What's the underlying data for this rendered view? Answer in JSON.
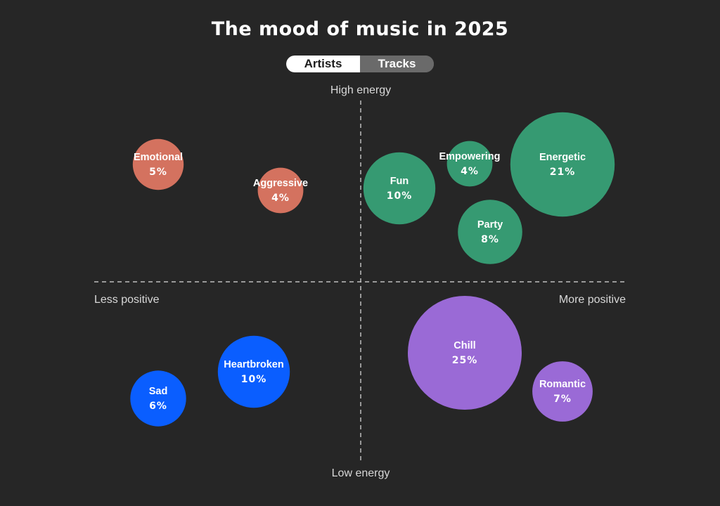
{
  "title": "The mood of music in 2025",
  "toggle": {
    "options": [
      "Artists",
      "Tracks"
    ],
    "selected": "Artists"
  },
  "chart_data": {
    "type": "bubble",
    "title": "The mood of music in 2025",
    "axis_labels": {
      "top": "High energy",
      "bottom": "Low energy",
      "left": "Less positive",
      "right": "More positive"
    },
    "grid": "dashed quadrant dividers",
    "colors": {
      "red": "#d4725f",
      "green": "#369a72",
      "blue": "#0a5eff",
      "purple": "#9a6ad6"
    },
    "bubbles": [
      {
        "label": "Emotional",
        "value_text": "5%",
        "value": 5,
        "color": "#d4725f"
      },
      {
        "label": "Aggressive",
        "value_text": "4%",
        "value": 4,
        "color": "#d4725f"
      },
      {
        "label": "Fun",
        "value_text": "10%",
        "value": 10,
        "color": "#369a72"
      },
      {
        "label": "Empowering",
        "value_text": "4%",
        "value": 4,
        "color": "#369a72"
      },
      {
        "label": "Energetic",
        "value_text": "21%",
        "value": 21,
        "color": "#369a72"
      },
      {
        "label": "Party",
        "value_text": "8%",
        "value": 8,
        "color": "#369a72"
      },
      {
        "label": "Chill",
        "value_text": "25%",
        "value": 25,
        "color": "#9a6ad6"
      },
      {
        "label": "Romantic",
        "value_text": "7%",
        "value": 7,
        "color": "#9a6ad6"
      },
      {
        "label": "Heartbroken",
        "value_text": "10%",
        "value": 10,
        "color": "#0a5eff"
      },
      {
        "label": "Sad",
        "value_text": "6%",
        "value": 6,
        "color": "#0a5eff"
      }
    ]
  }
}
